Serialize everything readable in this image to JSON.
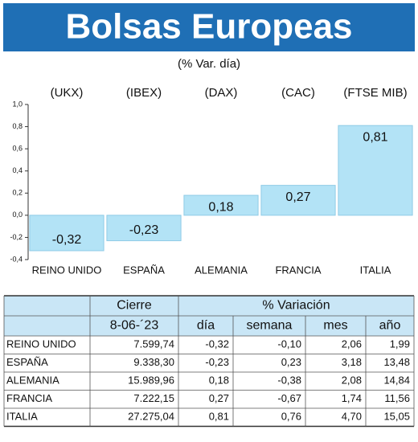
{
  "chart_data": {
    "type": "bar",
    "title": "Bolsas Europeas",
    "subtitle": "(% Var. día)",
    "annotations": [
      "(UKX)",
      "(IBEX)",
      "(DAX)",
      "(CAC)",
      "(FTSE MIB)"
    ],
    "categories": [
      "REINO UNIDO",
      "ESPAÑA",
      "ALEMANIA",
      "FRANCIA",
      "ITALIA"
    ],
    "values": [
      -0.32,
      -0.23,
      0.18,
      0.27,
      0.81
    ],
    "value_labels": [
      "-0,32",
      "-0,23",
      "0,18",
      "0,27",
      "0,81"
    ],
    "color": "#b3e3f6",
    "ylim": [
      -0.4,
      1.0
    ],
    "yticks": [
      {
        "value": -0.4,
        "label": "-0,4"
      },
      {
        "value": -0.2,
        "label": "-0,2"
      },
      {
        "value": 0,
        "label": "0,0"
      },
      {
        "value": 0.2,
        "label": "0,2"
      },
      {
        "value": 0.4,
        "label": "0,4"
      },
      {
        "value": 0.6,
        "label": "0,6"
      },
      {
        "value": 0.8,
        "label": "0,8"
      },
      {
        "value": 1.0,
        "label": "1,0"
      }
    ]
  },
  "table": {
    "header": [
      [
        "Cierre",
        "% Variación"
      ],
      [
        "8-06-´23",
        "día",
        "semana",
        "mes",
        "año"
      ]
    ],
    "rows": [
      [
        "REINO UNIDO",
        "7.599,74",
        "-0,32",
        "-0,10",
        "2,06",
        "1,99"
      ],
      [
        "ESPAÑA",
        "9.338,30",
        "-0,23",
        "0,23",
        "3,18",
        "13,48"
      ],
      [
        "ALEMANIA",
        "15.989,96",
        "0,18",
        "-0,38",
        "2,08",
        "14,84"
      ],
      [
        "FRANCIA",
        "7.222,15",
        "0,27",
        "-0,67",
        "1,74",
        "11,56"
      ],
      [
        "ITALIA",
        "27.275,04",
        "0,81",
        "0,76",
        "4,70",
        "15,05"
      ]
    ]
  }
}
